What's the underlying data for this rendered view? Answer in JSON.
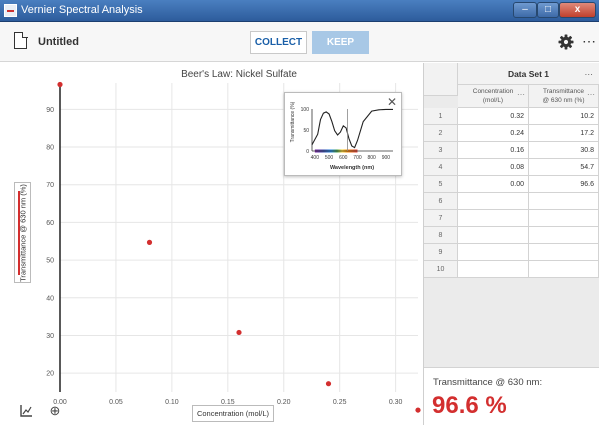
{
  "window": {
    "title": "Vernier Spectral Analysis",
    "close_glyph": "x"
  },
  "toolbar": {
    "file_name": "Untitled",
    "collect_label": "COLLECT",
    "keep_label": "KEEP",
    "more_glyph": "⋯"
  },
  "icons": {
    "file": "document-icon",
    "settings": "gear-icon",
    "more": "more-options-icon",
    "axes_tool": "graph-axes-icon",
    "zoom_tool": "zoom-icon",
    "inset_close": "close-icon"
  },
  "colors": {
    "accent_blue": "#1a5fa8",
    "point_red": "#d32f2f",
    "keep_disabled": "#a8c8e6"
  },
  "graph": {
    "title": "Beer's Law: Nickel Sulfate",
    "ylabel": "Transmittance @ 630 nm (%)",
    "xlabel": "Concentration (mol/L)",
    "zoom_glyph": "⊕"
  },
  "spectrum_inset": {
    "ylabel": "Transmittance (%)",
    "xlabel": "Wavelength (nm)",
    "close_glyph": "✕",
    "x_ticks": [
      "400",
      "500",
      "600",
      "700",
      "800",
      "900"
    ],
    "y_ticks": [
      "100",
      "50",
      "0"
    ]
  },
  "chart_data": [
    {
      "type": "scatter",
      "title": "Beer's Law: Nickel Sulfate",
      "xlabel": "Concentration (mol/L)",
      "ylabel": "Transmittance @ 630 nm (%)",
      "xlim": [
        0,
        0.32
      ],
      "ylim": [
        15,
        97
      ],
      "x_ticks": [
        "0.00",
        "0.05",
        "0.10",
        "0.15",
        "0.20",
        "0.25",
        "0.30"
      ],
      "y_ticks": [
        "20",
        "30",
        "40",
        "50",
        "60",
        "70",
        "80",
        "90"
      ],
      "grid": true,
      "points": [
        {
          "x": 0.32,
          "y": 10.2
        },
        {
          "x": 0.24,
          "y": 17.2
        },
        {
          "x": 0.16,
          "y": 30.8
        },
        {
          "x": 0.08,
          "y": 54.7
        },
        {
          "x": 0.0,
          "y": 96.6
        }
      ]
    },
    {
      "type": "line",
      "title": "",
      "xlabel": "Wavelength (nm)",
      "ylabel": "Transmittance (%)",
      "xlim": [
        380,
        950
      ],
      "ylim": [
        0,
        100
      ],
      "x": [
        380,
        420,
        440,
        460,
        480,
        500,
        520,
        540,
        560,
        580,
        600,
        620,
        640,
        660,
        680,
        700,
        740,
        800,
        850,
        900,
        950
      ],
      "y": [
        15,
        40,
        75,
        90,
        93,
        88,
        70,
        48,
        38,
        45,
        60,
        55,
        30,
        12,
        8,
        25,
        70,
        95,
        98,
        99,
        99
      ]
    }
  ],
  "table": {
    "data_set_name": "Data Set 1",
    "more_glyph": "⋯",
    "columns": [
      {
        "line1": "Concentration",
        "line2": "(mol/L)"
      },
      {
        "line1": "Transmittance",
        "line2": "@ 630 nm (%)"
      }
    ],
    "rows": [
      {
        "n": "1",
        "c1": "0.32",
        "c2": "10.2"
      },
      {
        "n": "2",
        "c1": "0.24",
        "c2": "17.2"
      },
      {
        "n": "3",
        "c1": "0.16",
        "c2": "30.8"
      },
      {
        "n": "4",
        "c1": "0.08",
        "c2": "54.7"
      },
      {
        "n": "5",
        "c1": "0.00",
        "c2": "96.6"
      },
      {
        "n": "6",
        "c1": "",
        "c2": ""
      },
      {
        "n": "7",
        "c1": "",
        "c2": ""
      },
      {
        "n": "8",
        "c1": "",
        "c2": ""
      },
      {
        "n": "9",
        "c1": "",
        "c2": ""
      },
      {
        "n": "10",
        "c1": "",
        "c2": ""
      }
    ]
  },
  "meter": {
    "label": "Transmittance @ 630 nm:",
    "value": "96.6 %"
  }
}
